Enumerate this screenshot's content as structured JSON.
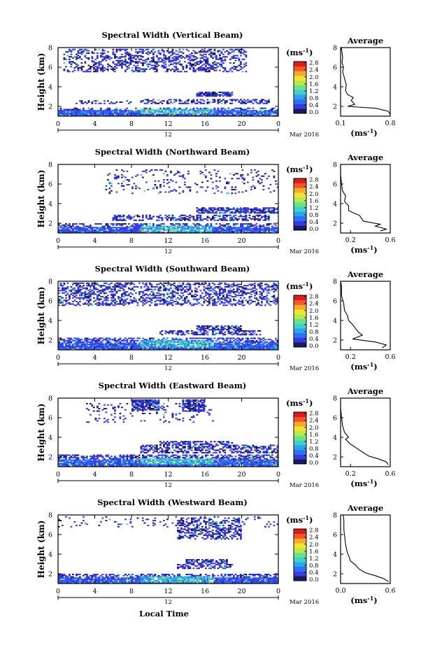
{
  "figure": {
    "xlabel": "Local Time",
    "date_label": "Mar 2016",
    "day_label": "12",
    "colorbar_unit": "(ms",
    "colorbar_unit_sup": "-1",
    "colorbar_unit_close": ")",
    "colorbar_ticks": [
      "0.0",
      "0.4",
      "0.8",
      "1.2",
      "1.6",
      "2.0",
      "2.4",
      "2.8"
    ],
    "avg_title": "Average",
    "avg_unit": "(ms",
    "avg_unit_sup": "-1",
    "avg_unit_close": ")",
    "colormap": [
      "#1a1a5e",
      "#3a3adf",
      "#2d6ff5",
      "#2fa3ef",
      "#3fd2c8",
      "#6fe08a",
      "#b8ea4a",
      "#f2e236",
      "#f7a92d",
      "#f1552a",
      "#d81d1d"
    ]
  },
  "chart_data": [
    {
      "type": "heatmap",
      "title": "Spectral Width (Vertical Beam)",
      "ylabel": "Height (km)",
      "xlim": [
        0,
        24
      ],
      "ylim": [
        1,
        8
      ],
      "xticks": [
        "0",
        "4",
        "8",
        "12",
        "16",
        "20",
        "0"
      ],
      "yticks": [
        "2",
        "4",
        "6",
        "8"
      ],
      "clim": [
        0,
        2.8
      ],
      "layers": [
        {
          "t": [
            0,
            24
          ],
          "h": [
            1.0,
            1.6
          ],
          "density": 0.93,
          "level": 0.55
        },
        {
          "t": [
            9,
            17
          ],
          "h": [
            1.2,
            1.7
          ],
          "density": 0.85,
          "level": 1.05
        },
        {
          "t": [
            0,
            24
          ],
          "h": [
            1.6,
            1.9
          ],
          "density": 0.45,
          "level": 0.35
        },
        {
          "t": [
            2,
            8
          ],
          "h": [
            2.3,
            2.6
          ],
          "density": 0.35,
          "level": 0.3
        },
        {
          "t": [
            9,
            23
          ],
          "h": [
            2.3,
            2.8
          ],
          "density": 0.45,
          "level": 0.3
        },
        {
          "t": [
            15,
            19
          ],
          "h": [
            3.0,
            3.5
          ],
          "density": 0.85,
          "level": 0.3
        },
        {
          "t": [
            0.5,
            20.5
          ],
          "h": [
            5.5,
            7.9
          ],
          "density": 0.38,
          "level": 0.3
        }
      ],
      "avg": {
        "xlim": [
          0.1,
          0.8
        ],
        "xticks": [
          "0.1",
          "0.8"
        ],
        "ylim": [
          1,
          8
        ],
        "yticks": [
          "2",
          "4",
          "6",
          "8"
        ],
        "profile": [
          [
            0.8,
            1.2
          ],
          [
            0.77,
            1.5
          ],
          [
            0.6,
            1.8
          ],
          [
            0.2,
            2.0
          ],
          [
            0.3,
            2.2
          ],
          [
            0.25,
            2.6
          ],
          [
            0.28,
            2.9
          ],
          [
            0.2,
            3.2
          ],
          [
            0.17,
            3.6
          ],
          [
            0.18,
            4.2
          ],
          [
            0.15,
            5.0
          ],
          [
            0.13,
            5.5
          ],
          [
            0.14,
            6.0
          ],
          [
            0.12,
            6.5
          ],
          [
            0.13,
            7.0
          ],
          [
            0.12,
            7.5
          ],
          [
            0.11,
            8.0
          ]
        ]
      }
    },
    {
      "type": "heatmap",
      "title": "Spectral Width (Northward Beam)",
      "ylabel": "Height (km)",
      "xlim": [
        0,
        24
      ],
      "ylim": [
        1,
        8
      ],
      "xticks": [
        "0",
        "4",
        "8",
        "12",
        "16",
        "20",
        "0"
      ],
      "yticks": [
        "2",
        "4",
        "6",
        "8"
      ],
      "clim": [
        0,
        2.8
      ],
      "layers": [
        {
          "t": [
            0,
            24
          ],
          "h": [
            1.0,
            1.6
          ],
          "density": 0.93,
          "level": 0.5
        },
        {
          "t": [
            9,
            17
          ],
          "h": [
            1.1,
            1.8
          ],
          "density": 0.85,
          "level": 1.0
        },
        {
          "t": [
            0,
            24
          ],
          "h": [
            1.6,
            2.0
          ],
          "density": 0.5,
          "level": 0.35
        },
        {
          "t": [
            6,
            23
          ],
          "h": [
            2.2,
            2.9
          ],
          "density": 0.45,
          "level": 0.3
        },
        {
          "t": [
            15,
            24
          ],
          "h": [
            3.0,
            3.6
          ],
          "density": 0.75,
          "level": 0.3
        },
        {
          "t": [
            5,
            24
          ],
          "h": [
            5.0,
            7.5
          ],
          "density": 0.12,
          "level": 0.3
        }
      ],
      "avg": {
        "xlim": [
          0.1,
          0.6
        ],
        "xticks": [
          "0.2",
          "0.6"
        ],
        "ylim": [
          1,
          8
        ],
        "yticks": [
          "2",
          "4",
          "6",
          "8"
        ],
        "profile": [
          [
            0.5,
            1.2
          ],
          [
            0.56,
            1.4
          ],
          [
            0.45,
            1.7
          ],
          [
            0.5,
            1.9
          ],
          [
            0.33,
            2.2
          ],
          [
            0.29,
            2.8
          ],
          [
            0.24,
            3.0
          ],
          [
            0.18,
            3.3
          ],
          [
            0.18,
            3.8
          ],
          [
            0.14,
            4.2
          ],
          [
            0.15,
            4.8
          ],
          [
            0.12,
            5.3
          ],
          [
            0.11,
            6.0
          ],
          [
            0.1,
            7.0
          ],
          [
            0.1,
            8.0
          ]
        ]
      }
    },
    {
      "type": "heatmap",
      "title": "Spectral Width (Southward Beam)",
      "ylabel": "Height (km)",
      "xlim": [
        0,
        24
      ],
      "ylim": [
        1,
        8
      ],
      "xticks": [
        "0",
        "4",
        "8",
        "12",
        "16",
        "20",
        "0"
      ],
      "yticks": [
        "2",
        "4",
        "6",
        "8"
      ],
      "clim": [
        0,
        2.8
      ],
      "layers": [
        {
          "t": [
            0,
            24
          ],
          "h": [
            1.0,
            1.8
          ],
          "density": 0.95,
          "level": 0.55
        },
        {
          "t": [
            9,
            17
          ],
          "h": [
            1.2,
            2.0
          ],
          "density": 0.85,
          "level": 1.0
        },
        {
          "t": [
            0,
            24
          ],
          "h": [
            1.8,
            2.2
          ],
          "density": 0.55,
          "level": 0.4
        },
        {
          "t": [
            11,
            22
          ],
          "h": [
            2.5,
            3.0
          ],
          "density": 0.45,
          "level": 0.3
        },
        {
          "t": [
            15,
            20
          ],
          "h": [
            3.0,
            3.5
          ],
          "density": 0.75,
          "level": 0.3
        },
        {
          "t": [
            0,
            24
          ],
          "h": [
            5.5,
            7.9
          ],
          "density": 0.42,
          "level": 0.32
        }
      ],
      "avg": {
        "xlim": [
          0.1,
          0.6
        ],
        "xticks": [
          "0.2",
          "0.6"
        ],
        "ylim": [
          1,
          8
        ],
        "yticks": [
          "2",
          "4",
          "6",
          "8"
        ],
        "profile": [
          [
            0.52,
            1.2
          ],
          [
            0.56,
            1.5
          ],
          [
            0.45,
            1.8
          ],
          [
            0.22,
            2.1
          ],
          [
            0.32,
            2.5
          ],
          [
            0.28,
            2.8
          ],
          [
            0.25,
            3.2
          ],
          [
            0.22,
            3.6
          ],
          [
            0.18,
            4.0
          ],
          [
            0.17,
            4.5
          ],
          [
            0.14,
            5.0
          ],
          [
            0.13,
            5.8
          ],
          [
            0.11,
            6.5
          ],
          [
            0.11,
            7.5
          ],
          [
            0.1,
            8.0
          ]
        ]
      }
    },
    {
      "type": "heatmap",
      "title": "Spectral Width (Eastward Beam)",
      "ylabel": "Height (km)",
      "xlim": [
        0,
        24
      ],
      "ylim": [
        1,
        8
      ],
      "xticks": [
        "0",
        "4",
        "8",
        "12",
        "16",
        "20",
        "0"
      ],
      "yticks": [
        "2",
        "4",
        "6",
        "8"
      ],
      "clim": [
        0,
        2.8
      ],
      "layers": [
        {
          "t": [
            0,
            24
          ],
          "h": [
            1.0,
            1.7
          ],
          "density": 0.93,
          "level": 0.55
        },
        {
          "t": [
            9,
            17
          ],
          "h": [
            1.2,
            1.9
          ],
          "density": 0.85,
          "level": 1.0
        },
        {
          "t": [
            0,
            24
          ],
          "h": [
            1.7,
            2.2
          ],
          "density": 0.55,
          "level": 0.35
        },
        {
          "t": [
            9,
            24
          ],
          "h": [
            2.4,
            3.2
          ],
          "density": 0.55,
          "level": 0.3
        },
        {
          "t": [
            11,
            19
          ],
          "h": [
            3.2,
            3.6
          ],
          "density": 0.55,
          "level": 0.3
        },
        {
          "t": [
            8,
            11
          ],
          "h": [
            6.8,
            7.9
          ],
          "density": 0.8,
          "level": 0.3
        },
        {
          "t": [
            13.5,
            16
          ],
          "h": [
            6.6,
            7.9
          ],
          "density": 0.8,
          "level": 0.3
        },
        {
          "t": [
            3,
            17
          ],
          "h": [
            5.5,
            7.5
          ],
          "density": 0.12,
          "level": 0.3
        }
      ],
      "avg": {
        "xlim": [
          0.1,
          0.6
        ],
        "xticks": [
          "0.2",
          "0.6"
        ],
        "ylim": [
          1,
          8
        ],
        "yticks": [
          "2",
          "4",
          "6",
          "8"
        ],
        "profile": [
          [
            0.58,
            1.2
          ],
          [
            0.56,
            1.5
          ],
          [
            0.48,
            1.8
          ],
          [
            0.38,
            2.1
          ],
          [
            0.32,
            2.5
          ],
          [
            0.26,
            2.9
          ],
          [
            0.2,
            3.3
          ],
          [
            0.15,
            3.8
          ],
          [
            0.18,
            4.0
          ],
          [
            0.14,
            4.5
          ],
          [
            0.12,
            5.2
          ],
          [
            0.11,
            6.0
          ],
          [
            0.1,
            7.0
          ],
          [
            0.1,
            8.0
          ]
        ]
      }
    },
    {
      "type": "heatmap",
      "title": "Spectral Width (Westward Beam)",
      "ylabel": "Height (km)",
      "xlim": [
        0,
        24
      ],
      "ylim": [
        1,
        8
      ],
      "xticks": [
        "0",
        "4",
        "8",
        "12",
        "16",
        "20",
        "0"
      ],
      "yticks": [
        "2",
        "4",
        "6",
        "8"
      ],
      "clim": [
        0,
        2.8
      ],
      "layers": [
        {
          "t": [
            0,
            24
          ],
          "h": [
            1.0,
            1.6
          ],
          "density": 0.93,
          "level": 0.5
        },
        {
          "t": [
            9,
            17
          ],
          "h": [
            1.1,
            1.8
          ],
          "density": 0.85,
          "level": 0.95
        },
        {
          "t": [
            0,
            24
          ],
          "h": [
            1.6,
            2.0
          ],
          "density": 0.5,
          "level": 0.35
        },
        {
          "t": [
            13,
            19
          ],
          "h": [
            2.5,
            3.0
          ],
          "density": 0.5,
          "level": 0.3
        },
        {
          "t": [
            14,
            18.5
          ],
          "h": [
            3.0,
            3.5
          ],
          "density": 0.7,
          "level": 0.3
        },
        {
          "t": [
            13,
            20
          ],
          "h": [
            5.5,
            7.8
          ],
          "density": 0.45,
          "level": 0.3
        },
        {
          "t": [
            0,
            24
          ],
          "h": [
            6.8,
            7.9
          ],
          "density": 0.1,
          "level": 0.3
        }
      ],
      "avg": {
        "xlim": [
          0.0,
          0.6
        ],
        "xticks": [
          "0.0",
          "0.6"
        ],
        "ylim": [
          1,
          8
        ],
        "yticks": [
          "2",
          "4",
          "6",
          "8"
        ],
        "profile": [
          [
            0.58,
            1.2
          ],
          [
            0.52,
            1.5
          ],
          [
            0.42,
            1.8
          ],
          [
            0.3,
            2.1
          ],
          [
            0.22,
            2.5
          ],
          [
            0.18,
            2.9
          ],
          [
            0.12,
            3.3
          ],
          [
            0.1,
            3.8
          ],
          [
            0.08,
            4.2
          ],
          [
            0.06,
            5.0
          ],
          [
            0.05,
            5.8
          ],
          [
            0.04,
            6.5
          ],
          [
            0.04,
            7.5
          ],
          [
            0.03,
            8.0
          ]
        ]
      }
    }
  ]
}
